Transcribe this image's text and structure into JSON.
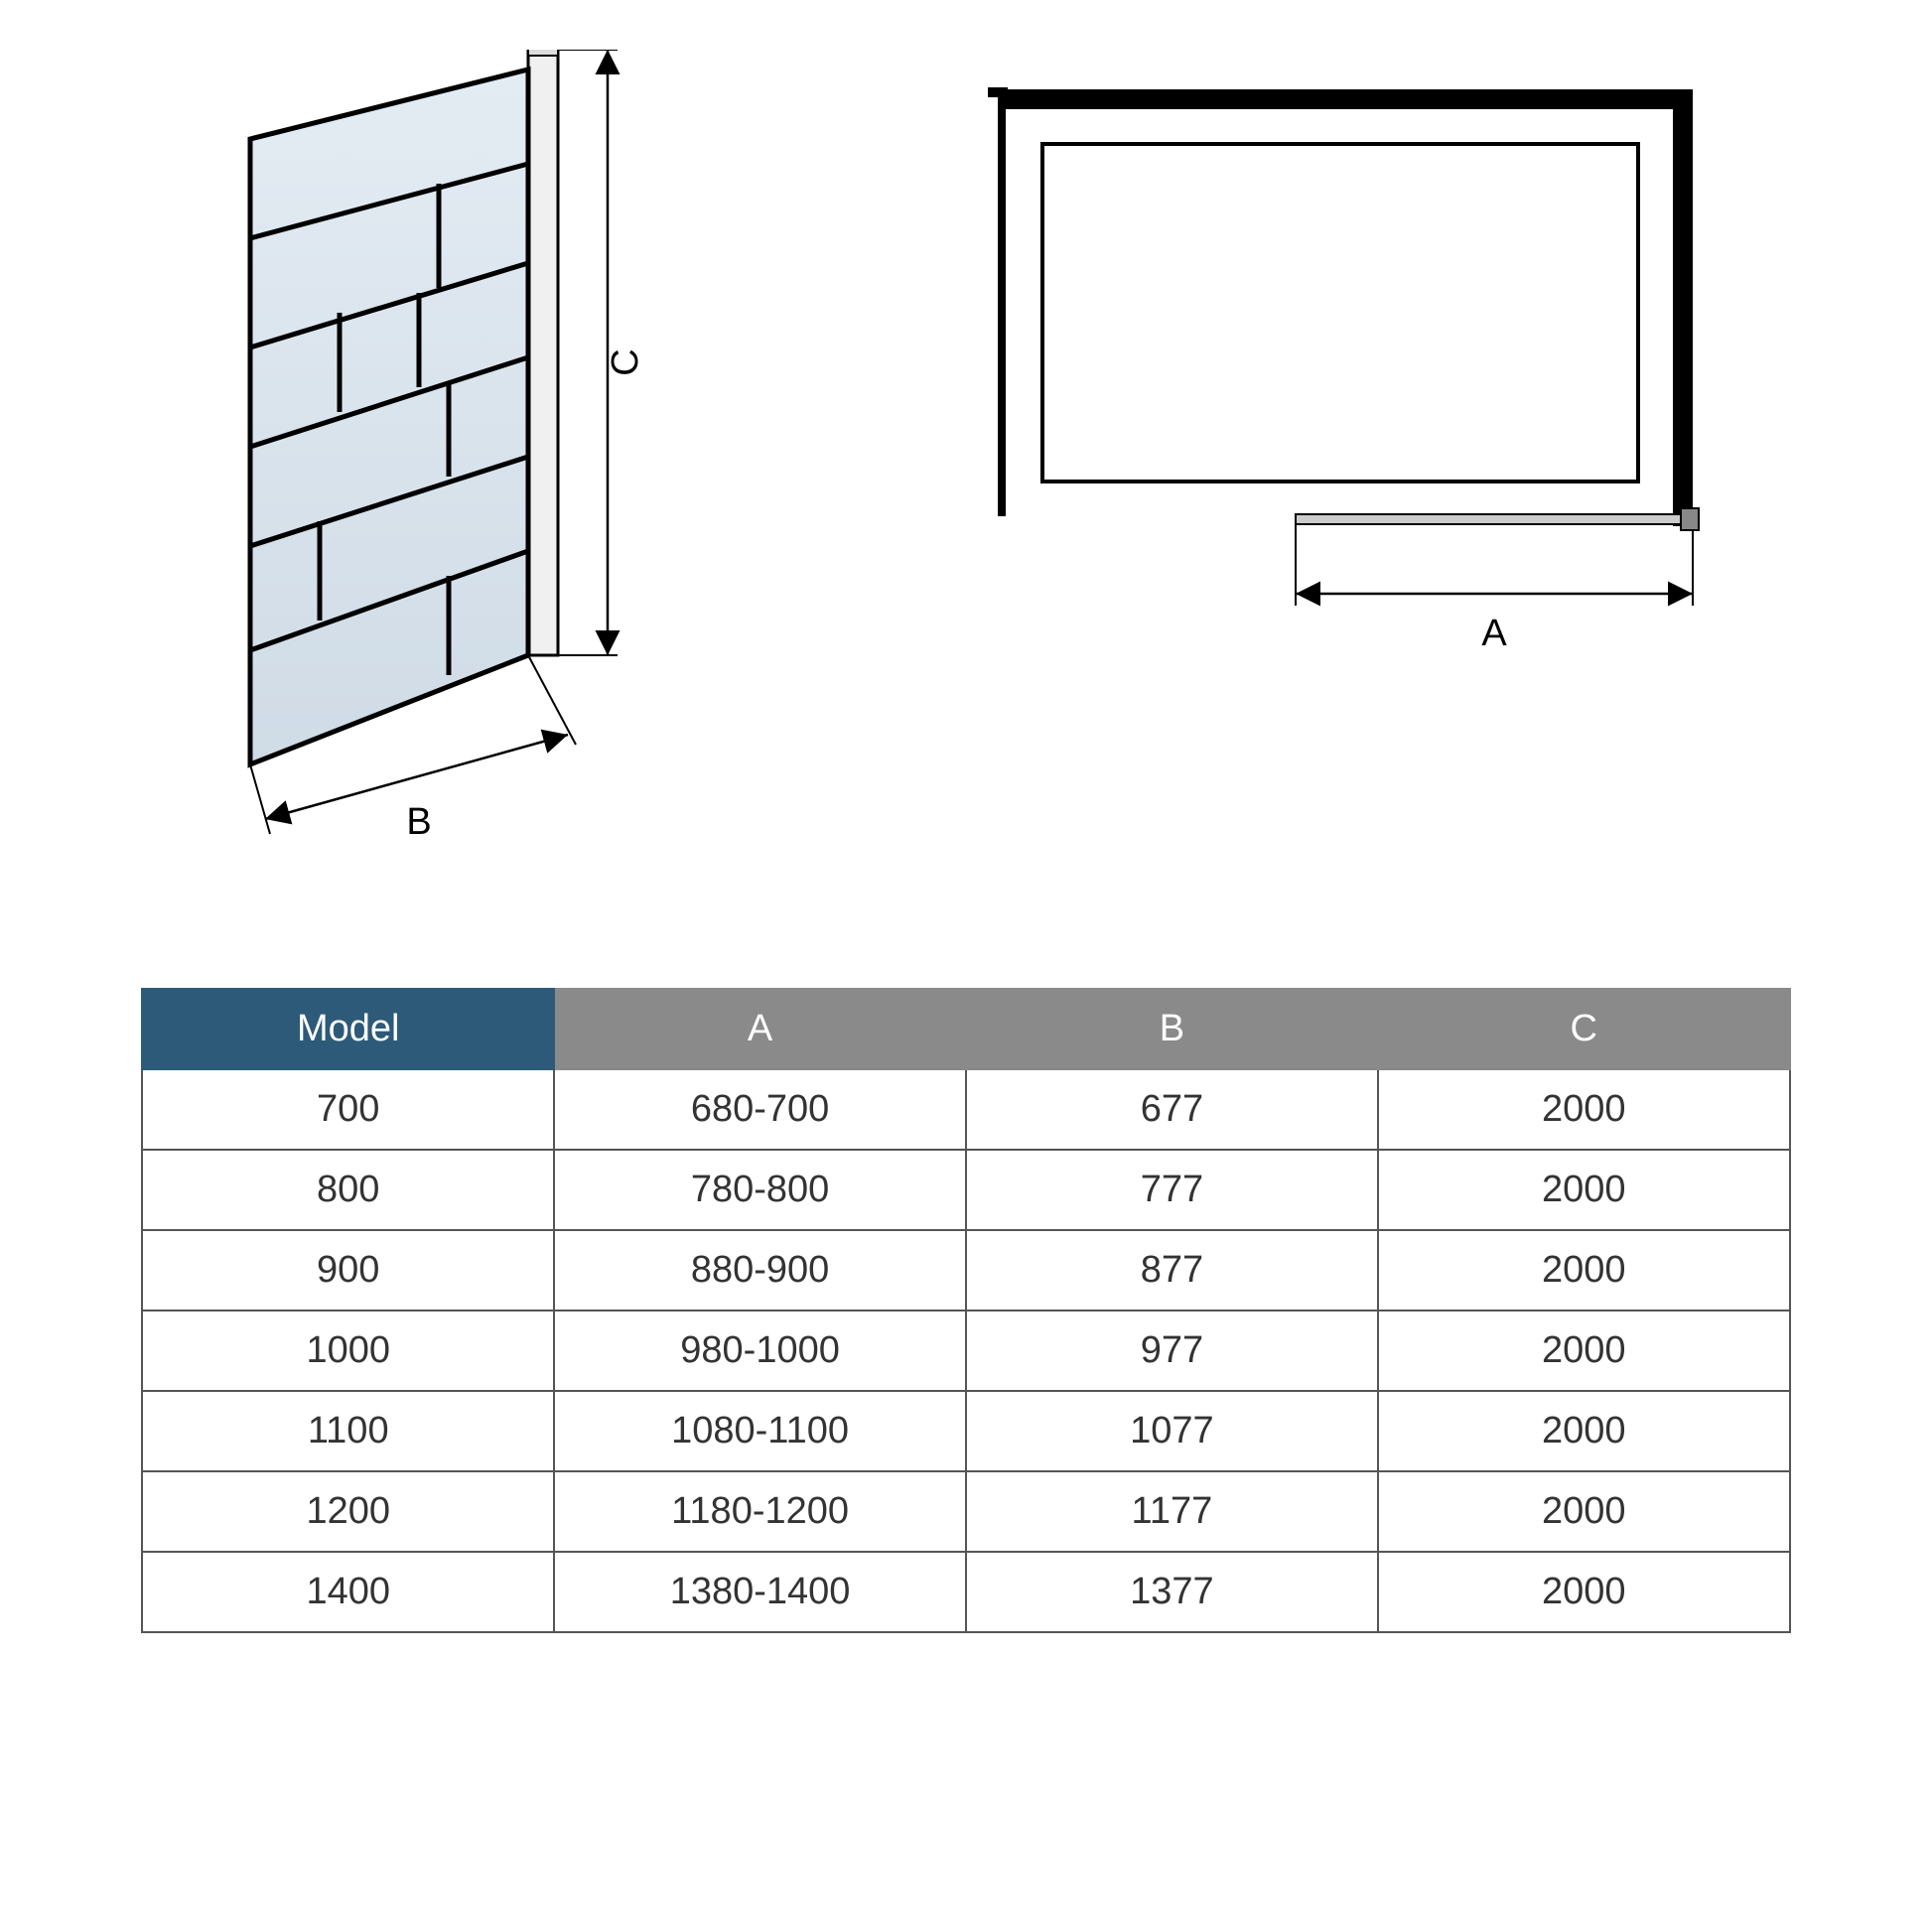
{
  "dim_labels": {
    "A": "A",
    "B": "B",
    "C": "C"
  },
  "table": {
    "headers": {
      "model": "Model",
      "a": "A",
      "b": "B",
      "c": "C"
    },
    "header_colors": {
      "model_bg": "#2d5a78",
      "dim_bg": "#8a8a8a",
      "text": "#ffffff"
    },
    "border_color": "#555555",
    "font_size": 38,
    "rows": [
      {
        "model": "700",
        "a": "680-700",
        "b": "677",
        "c": "2000"
      },
      {
        "model": "800",
        "a": "780-800",
        "b": "777",
        "c": "2000"
      },
      {
        "model": "900",
        "a": "880-900",
        "b": "877",
        "c": "2000"
      },
      {
        "model": "1000",
        "a": "980-1000",
        "b": "977",
        "c": "2000"
      },
      {
        "model": "1100",
        "a": "1080-1100",
        "b": "1077",
        "c": "2000"
      },
      {
        "model": "1200",
        "a": "1180-1200",
        "b": "1177",
        "c": "2000"
      },
      {
        "model": "1400",
        "a": "1380-1400",
        "b": "1377",
        "c": "2000"
      }
    ]
  },
  "left_diagram": {
    "panel_fill": "#e8eff5",
    "panel_fill_dark": "#d0dde8",
    "line_color": "#000000",
    "line_width": 4,
    "profile_fill": "#f5f5f5"
  },
  "right_diagram": {
    "outer_color": "#000000",
    "inner_fill": "#ffffff",
    "line_width_outer": 16,
    "line_width_inner": 3
  }
}
